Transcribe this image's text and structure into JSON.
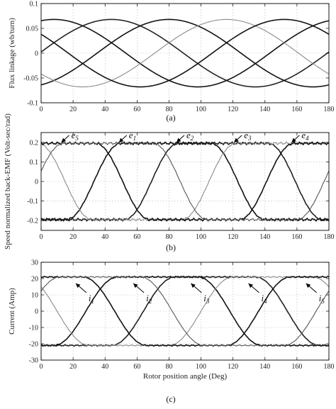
{
  "chart_data": [
    {
      "type": "line",
      "caption": "(a)",
      "ylabel": "Flux linkage (wb/turn)",
      "xlabel": "",
      "xlim": [
        0,
        180
      ],
      "ylim": [
        -0.1,
        0.1
      ],
      "xticks": [
        0,
        20,
        40,
        60,
        80,
        100,
        120,
        140,
        160,
        180
      ],
      "yticks": [
        -0.1,
        -0.05,
        0,
        0.05,
        0.1
      ],
      "ytick_labels": [
        "-0.1",
        "-0.05",
        "0",
        "0.05",
        "0.1"
      ],
      "grid": true,
      "series": [
        {
          "color": "#111111",
          "amplitude": 0.068,
          "peak_deg": 8
        },
        {
          "color": "#222222",
          "amplitude": 0.068,
          "peak_deg": 44
        },
        {
          "color": "#111111",
          "amplitude": 0.068,
          "peak_deg": 80
        },
        {
          "color": "#8a8a8a",
          "amplitude": 0.068,
          "peak_deg": 116
        },
        {
          "color": "#111111",
          "amplitude": 0.068,
          "peak_deg": 152
        }
      ],
      "annotations": []
    },
    {
      "type": "line",
      "caption": "(b)",
      "ylabel": "Speed normalized back-EMF (Volt-sec/rad)",
      "xlabel": "",
      "xlim": [
        0,
        180
      ],
      "ylim": [
        -0.25,
        0.25
      ],
      "xticks": [
        0,
        20,
        40,
        60,
        80,
        100,
        120,
        140,
        160,
        180
      ],
      "yticks": [
        -0.2,
        -0.1,
        0,
        0.1,
        0.2
      ],
      "ytick_labels": [
        "-0.2",
        "-0.1",
        "0",
        "0.1",
        "0.2"
      ],
      "grid": true,
      "series": [
        {
          "color": "#111111",
          "amplitude": 0.195,
          "rise_center_deg": 33
        },
        {
          "color": "#222222",
          "amplitude": 0.195,
          "rise_center_deg": 69
        },
        {
          "color": "#8a8a8a",
          "amplitude": 0.195,
          "rise_center_deg": 105
        },
        {
          "color": "#111111",
          "amplitude": 0.195,
          "rise_center_deg": 141
        },
        {
          "color": "#555555",
          "amplitude": 0.195,
          "rise_center_deg": -3
        }
      ],
      "annotations": [
        {
          "base": "e",
          "sub": "5",
          "x": 18,
          "y": 0.225
        },
        {
          "base": "e",
          "sub": "1",
          "x": 54,
          "y": 0.225
        },
        {
          "base": "e",
          "sub": "2",
          "x": 90,
          "y": 0.225
        },
        {
          "base": "e",
          "sub": "3",
          "x": 126,
          "y": 0.225
        },
        {
          "base": "e",
          "sub": "4",
          "x": 162,
          "y": 0.225
        }
      ]
    },
    {
      "type": "line",
      "caption": "(c)",
      "ylabel": "Current (Amp)",
      "xlabel": "Rotor position angle (Deg)",
      "xlim": [
        0,
        180
      ],
      "ylim": [
        -30,
        30
      ],
      "xticks": [
        0,
        20,
        40,
        60,
        80,
        100,
        120,
        140,
        160,
        180
      ],
      "yticks": [
        -30,
        -20,
        -10,
        0,
        10,
        20,
        30
      ],
      "ytick_labels": [
        "-30",
        "-20",
        "-10",
        "0",
        "10",
        "20",
        "30"
      ],
      "grid": true,
      "series": [
        {
          "color": "#111111",
          "amplitude": 21,
          "rise_center_deg": 28
        },
        {
          "color": "#222222",
          "amplitude": 21,
          "rise_center_deg": 64
        },
        {
          "color": "#8a8a8a",
          "amplitude": 21,
          "rise_center_deg": 100
        },
        {
          "color": "#111111",
          "amplitude": 21,
          "rise_center_deg": 136
        },
        {
          "color": "#555555",
          "amplitude": 21,
          "rise_center_deg": -8
        }
      ],
      "annotations": [
        {
          "base": "i",
          "sub": "1",
          "x": 27,
          "y": 7
        },
        {
          "base": "i",
          "sub": "2",
          "x": 63,
          "y": 7
        },
        {
          "base": "i",
          "sub": "3",
          "x": 99,
          "y": 7
        },
        {
          "base": "i",
          "sub": "4",
          "x": 135,
          "y": 7
        },
        {
          "base": "i",
          "sub": "5",
          "x": 171,
          "y": 7
        }
      ]
    }
  ]
}
